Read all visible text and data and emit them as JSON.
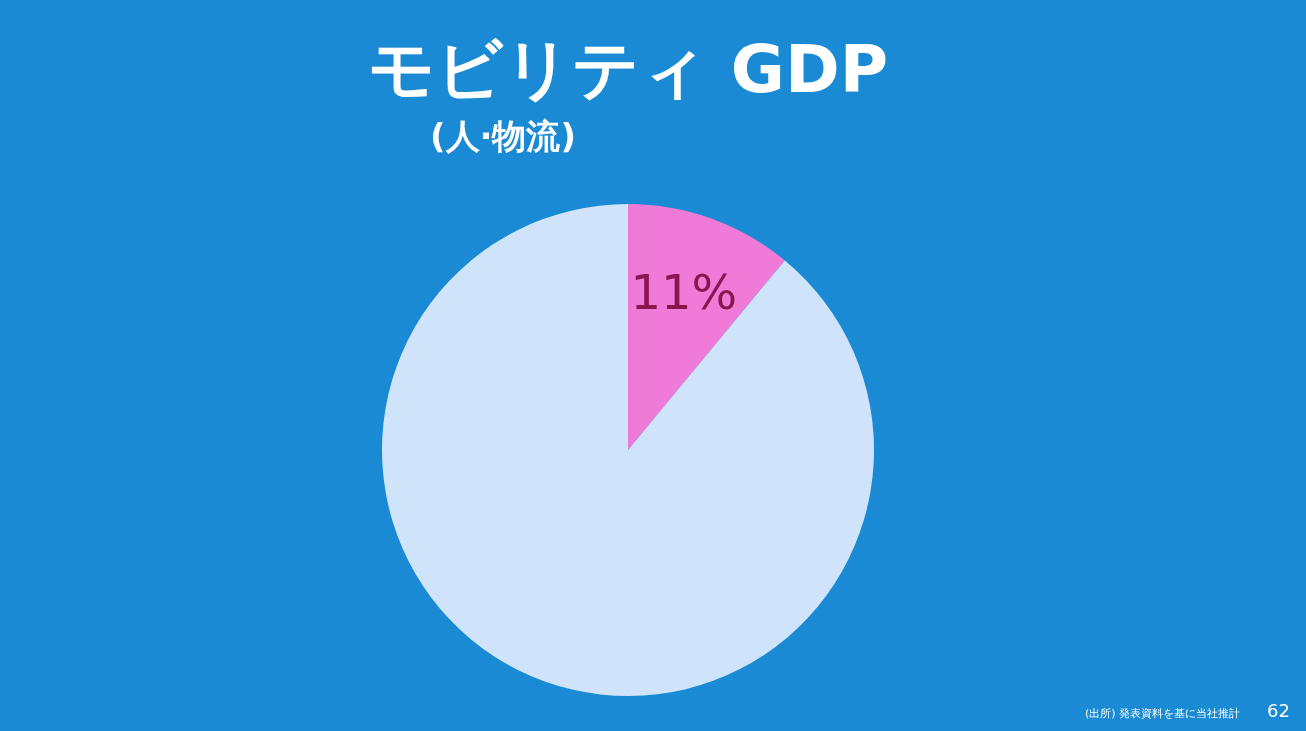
{
  "chart_data": {
    "type": "pie",
    "title": "モビリティ GDP",
    "subtitle": "(人·物流)",
    "categories": [
      null,
      null
    ],
    "values": [
      11,
      89
    ],
    "colors": [
      "#f07ad8",
      "#cfe3fa"
    ],
    "value_labels": [
      "11%",
      null
    ],
    "annotations": [
      "(出所) 発表資料を基に当社推計",
      "62"
    ]
  }
}
